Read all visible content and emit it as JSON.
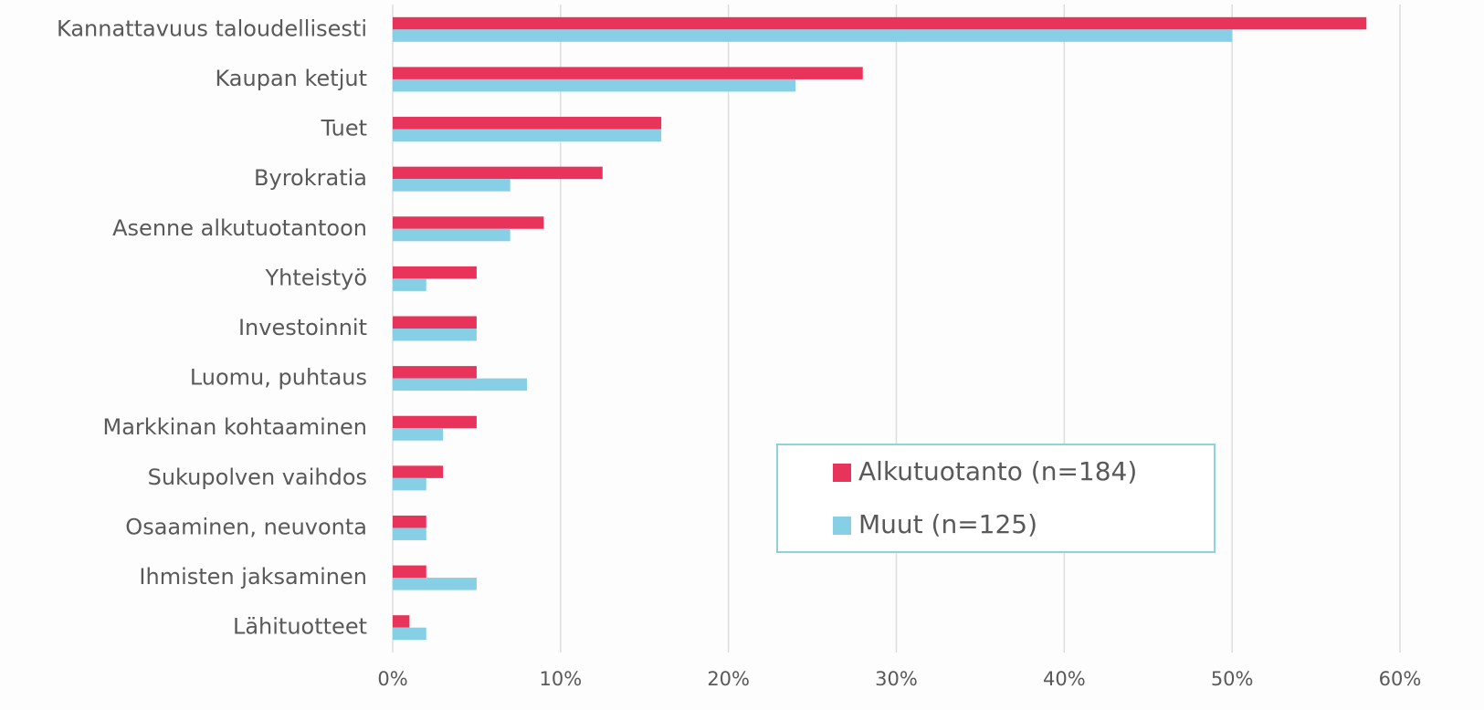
{
  "chart_data": {
    "type": "barh",
    "categories": [
      "Kannattavuus taloudellisesti",
      "Kaupan ketjut",
      "Tuet",
      "Byrokratia",
      "Asenne alkutuotantoon",
      "Yhteistyö",
      "Investoinnit",
      "Luomu, puhtaus",
      "Markkinan kohtaaminen",
      "Sukupolven vaihdos",
      "Osaaminen, neuvonta",
      "Ihmisten jaksaminen",
      "Lähituotteet"
    ],
    "series": [
      {
        "name": "Alkutuotanto (n=184)",
        "color": "#e8335a",
        "values": [
          58,
          28,
          16,
          12.5,
          9,
          5,
          5,
          5,
          5,
          3,
          2,
          2,
          1
        ]
      },
      {
        "name": "Muut (n=125)",
        "color": "#87cfe4",
        "values": [
          50,
          24,
          16,
          7,
          7,
          2,
          5,
          8,
          3,
          2,
          2,
          5,
          2
        ]
      }
    ],
    "xlim": [
      0,
      60
    ],
    "xticks": [
      {
        "value": 0,
        "label": "0%"
      },
      {
        "value": 10,
        "label": "10%"
      },
      {
        "value": 20,
        "label": "20%"
      },
      {
        "value": 30,
        "label": "30%"
      },
      {
        "value": 40,
        "label": "40%"
      },
      {
        "value": 50,
        "label": "50%"
      },
      {
        "value": 60,
        "label": "60%"
      }
    ],
    "grid": true,
    "legend": "lower right"
  }
}
